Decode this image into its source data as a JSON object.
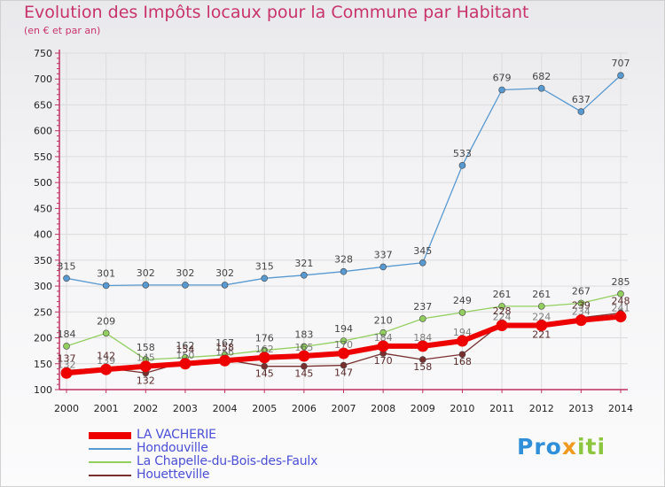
{
  "header": {
    "title": "Evolution des Impôts locaux pour la Commune par Habitant",
    "subtitle": "(en € et par an)"
  },
  "logo": {
    "part1": "Pro",
    "part2": "x",
    "part3": "iti"
  },
  "chart_data": {
    "type": "line",
    "title": "Evolution des Impôts locaux pour la Commune par Habitant",
    "subtitle": "(en € et par an)",
    "xlabel": "",
    "ylabel": "",
    "x": [
      "2000",
      "2001",
      "2002",
      "2003",
      "2004",
      "2005",
      "2006",
      "2007",
      "2008",
      "2009",
      "2010",
      "2011",
      "2012",
      "2013",
      "2014"
    ],
    "yticks": [
      100,
      150,
      200,
      250,
      300,
      350,
      400,
      450,
      500,
      550,
      600,
      650,
      700,
      750
    ],
    "ylim": [
      100,
      750
    ],
    "grid": true,
    "legend_position": "bottom-left",
    "series": [
      {
        "name": "LA VACHERIE",
        "color": "#ee0000",
        "labels": false,
        "values": [
          132,
          139,
          145,
          150,
          156,
          162,
          165,
          170,
          184,
          184,
          194,
          224,
          224,
          234,
          241
        ]
      },
      {
        "name": "Hondouville",
        "color": "#5799d1",
        "labels": true,
        "values": [
          315,
          301,
          302,
          302,
          302,
          315,
          321,
          328,
          337,
          345,
          533,
          679,
          682,
          637,
          707
        ]
      },
      {
        "name": "La Chapelle-du-Bois-des-Faulx",
        "color": "#92cf5f",
        "labels": true,
        "values": [
          184,
          209,
          158,
          162,
          167,
          176,
          183,
          194,
          210,
          237,
          249,
          261,
          261,
          267,
          285
        ]
      },
      {
        "name": "Houetteville",
        "color": "#7a2f2f",
        "labels": true,
        "values": [
          137,
          142,
          132,
          154,
          158,
          145,
          145,
          147,
          170,
          158,
          168,
          228,
          221,
          239,
          248
        ]
      }
    ],
    "overlap_labels": [
      {
        "x": "2000",
        "text": "132"
      },
      {
        "x": "2001",
        "text": "139"
      },
      {
        "x": "2002",
        "text": "145"
      },
      {
        "x": "2003",
        "text": "150"
      },
      {
        "x": "2004",
        "text": "156"
      },
      {
        "x": "2005",
        "text": "162"
      },
      {
        "x": "2006",
        "text": "165"
      },
      {
        "x": "2007",
        "text": "170"
      },
      {
        "x": "2008",
        "text": "184"
      },
      {
        "x": "2009",
        "text": "184"
      },
      {
        "x": "2010",
        "text": "194"
      },
      {
        "x": "2011",
        "text": "224"
      },
      {
        "x": "2012",
        "text": "224"
      },
      {
        "x": "2013",
        "text": "234"
      },
      {
        "x": "2014",
        "text": "241"
      }
    ]
  }
}
